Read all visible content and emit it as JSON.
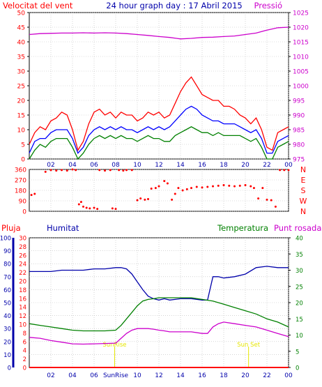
{
  "header": {
    "left_label": "Velocitat del vent",
    "title": "24 hour graph day : 17 Abril 2015",
    "right_label": "Pressió"
  },
  "colors": {
    "wind_gust": "#ff0000",
    "wind_avg": "#0000ff",
    "wind_low": "#008000",
    "pressure": "#cc00cc",
    "direction": "#ff0000",
    "rain": "#ff0000",
    "humidity": "#0000aa",
    "temperature": "#008000",
    "dewpoint": "#cc00cc",
    "sun_marker": "#e6e600",
    "grid": "#bbbbbb"
  },
  "chart_data": [
    {
      "id": "wind-pressure",
      "type": "line",
      "title": "24 hour graph day : 17 Abril 2015",
      "xlabel": "",
      "ylabel": "Velocitat del vent",
      "y2label": "Pressió",
      "x_range": [
        0,
        24
      ],
      "x_ticks": [
        "02",
        "04",
        "06",
        "08",
        "10",
        "12",
        "14",
        "16",
        "18",
        "20",
        "22",
        "00"
      ],
      "x_tick_positions": [
        2,
        4,
        6,
        8,
        10,
        12,
        14,
        16,
        18,
        20,
        22,
        24
      ],
      "ylim": [
        0,
        50
      ],
      "y_ticks": [
        0,
        5,
        10,
        15,
        20,
        25,
        30,
        35,
        40,
        45,
        50
      ],
      "y2lim": [
        975,
        1025
      ],
      "y2_ticks": [
        975,
        980,
        985,
        990,
        995,
        1000,
        1005,
        1010,
        1015,
        1020,
        1025
      ],
      "grid": true,
      "series": [
        {
          "key": "gust",
          "axis": "y",
          "x": [
            0,
            0.5,
            1,
            1.5,
            2,
            2.5,
            3,
            3.5,
            4,
            4.5,
            5,
            5.5,
            6,
            6.5,
            7,
            7.5,
            8,
            8.5,
            9,
            9.5,
            10,
            10.5,
            11,
            11.5,
            12,
            12.5,
            13,
            13.5,
            14,
            14.5,
            15,
            15.5,
            16,
            16.5,
            17,
            17.5,
            18,
            18.5,
            19,
            19.5,
            20,
            20.5,
            21,
            21.5,
            22,
            22.5,
            23,
            23.5,
            24
          ],
          "values": [
            5,
            9,
            11,
            10,
            13,
            14,
            16,
            15,
            10,
            3,
            6,
            12,
            16,
            17,
            15,
            16,
            14,
            16,
            15,
            15,
            13,
            14,
            16,
            15,
            16,
            14,
            15,
            19,
            23,
            26,
            28,
            25,
            22,
            21,
            20,
            20,
            18,
            18,
            17,
            15,
            14,
            12,
            14,
            10,
            4,
            3,
            9,
            10,
            11
          ]
        },
        {
          "key": "avg",
          "axis": "y",
          "x": [
            0,
            0.5,
            1,
            1.5,
            2,
            2.5,
            3,
            3.5,
            4,
            4.5,
            5,
            5.5,
            6,
            6.5,
            7,
            7.5,
            8,
            8.5,
            9,
            9.5,
            10,
            10.5,
            11,
            11.5,
            12,
            12.5,
            13,
            13.5,
            14,
            14.5,
            15,
            15.5,
            16,
            16.5,
            17,
            17.5,
            18,
            18.5,
            19,
            19.5,
            20,
            20.5,
            21,
            21.5,
            22,
            22.5,
            23,
            23.5,
            24
          ],
          "values": [
            2,
            6,
            7,
            7,
            9,
            10,
            10,
            10,
            7,
            2,
            4,
            8,
            10,
            11,
            10,
            11,
            10,
            11,
            10,
            10,
            9,
            10,
            11,
            10,
            11,
            10,
            11,
            13,
            15,
            17,
            18,
            17,
            15,
            14,
            13,
            13,
            12,
            12,
            12,
            11,
            10,
            9,
            10,
            7,
            2,
            2,
            6,
            7,
            8
          ]
        },
        {
          "key": "low",
          "axis": "y",
          "x": [
            0,
            0.5,
            1,
            1.5,
            2,
            2.5,
            3,
            3.5,
            4,
            4.5,
            5,
            5.5,
            6,
            6.5,
            7,
            7.5,
            8,
            8.5,
            9,
            9.5,
            10,
            10.5,
            11,
            11.5,
            12,
            12.5,
            13,
            13.5,
            14,
            14.5,
            15,
            15.5,
            16,
            16.5,
            17,
            17.5,
            18,
            18.5,
            19,
            19.5,
            20,
            20.5,
            21,
            21.5,
            22,
            22.5,
            23,
            23.5,
            24
          ],
          "values": [
            0,
            3,
            5,
            4,
            6,
            7,
            7,
            7,
            4,
            0,
            2,
            5,
            7,
            8,
            7,
            8,
            7,
            8,
            7,
            7,
            6,
            7,
            8,
            7,
            7,
            6,
            6,
            8,
            9,
            10,
            11,
            10,
            9,
            9,
            8,
            9,
            8,
            8,
            8,
            8,
            7,
            6,
            7,
            4,
            0,
            0,
            4,
            5,
            6
          ]
        },
        {
          "key": "pressure",
          "axis": "y2",
          "x": [
            0,
            1,
            2,
            3,
            4,
            5,
            6,
            7,
            8,
            9,
            10,
            11,
            12,
            13,
            14,
            15,
            16,
            17,
            18,
            19,
            20,
            21,
            22,
            23,
            24
          ],
          "values": [
            1017.5,
            1017.8,
            1017.9,
            1018.0,
            1018.0,
            1018.1,
            1018.0,
            1018.1,
            1018.0,
            1017.8,
            1017.5,
            1017.2,
            1016.8,
            1016.5,
            1016.0,
            1016.2,
            1016.5,
            1016.6,
            1016.8,
            1017.0,
            1017.5,
            1018.0,
            1019.0,
            1019.8,
            1020.0
          ]
        }
      ]
    },
    {
      "id": "wind-direction",
      "type": "scatter",
      "x_range": [
        0,
        24
      ],
      "ylim": [
        0,
        360
      ],
      "y_ticks": [
        0,
        90,
        180,
        270,
        360
      ],
      "y2_ticks": [
        "N",
        "W",
        "S",
        "E",
        "N"
      ],
      "grid": true,
      "x": [
        0.2,
        0.5,
        1.5,
        2.0,
        2.5,
        3.0,
        3.5,
        4.0,
        4.3,
        4.6,
        4.8,
        5.0,
        5.3,
        5.6,
        6.0,
        6.3,
        6.5,
        7.0,
        7.5,
        7.7,
        8.0,
        8.3,
        8.7,
        9.0,
        9.5,
        10.0,
        10.3,
        10.7,
        11.0,
        11.3,
        11.7,
        12.0,
        12.5,
        12.8,
        13.2,
        13.5,
        13.8,
        14.2,
        14.6,
        15.0,
        15.5,
        16.0,
        16.5,
        17.0,
        17.5,
        18.0,
        18.5,
        19.0,
        19.5,
        20.0,
        20.5,
        20.8,
        21.2,
        21.6,
        22.0,
        22.4,
        22.8,
        23.2,
        23.6,
        24.0
      ],
      "values": [
        140,
        150,
        340,
        355,
        350,
        355,
        350,
        360,
        355,
        60,
        80,
        40,
        30,
        25,
        30,
        20,
        355,
        350,
        355,
        25,
        20,
        355,
        350,
        355,
        355,
        95,
        110,
        100,
        105,
        195,
        200,
        215,
        260,
        240,
        100,
        150,
        200,
        180,
        190,
        200,
        210,
        205,
        210,
        215,
        220,
        225,
        220,
        215,
        220,
        225,
        215,
        200,
        110,
        200,
        100,
        95,
        40,
        355,
        355,
        355
      ]
    },
    {
      "id": "climate",
      "type": "line",
      "x_range": [
        0,
        24
      ],
      "x_ticks": [
        "02",
        "04",
        "06",
        "SunRise",
        "10",
        "12",
        "14",
        "16",
        "18",
        "20",
        "22",
        "00"
      ],
      "x_tick_positions": [
        2,
        4,
        6,
        8,
        10,
        12,
        14,
        16,
        18,
        20,
        22,
        24
      ],
      "rain_label": "Pluja",
      "humidity_label": "Humitat",
      "temperature_label": "Temperatura",
      "dewpoint_label": "Punt rosada",
      "humidity_lim": [
        0,
        100
      ],
      "humidity_ticks": [
        0,
        10,
        20,
        30,
        40,
        50,
        60,
        70,
        80,
        90,
        100
      ],
      "rain_lim": [
        0,
        30
      ],
      "rain_ticks": [
        0,
        2,
        4,
        6,
        8,
        10,
        12,
        14,
        16,
        18,
        20,
        22,
        24,
        26,
        28,
        30
      ],
      "temperature_lim": [
        0,
        40
      ],
      "temperature_ticks": [
        0,
        5,
        10,
        15,
        20,
        25,
        30,
        35,
        40
      ],
      "grid": true,
      "sunrise": {
        "x": 7.9,
        "label": "SunRise"
      },
      "sunset": {
        "x": 20.3,
        "label": "Sun Set"
      },
      "series": [
        {
          "key": "humidity",
          "axis": "humidity",
          "x": [
            0,
            1,
            2,
            3,
            4,
            5,
            6,
            7,
            8,
            8.5,
            9,
            9.5,
            10,
            10.5,
            11,
            11.5,
            12,
            12.5,
            13,
            14,
            15,
            16,
            16.5,
            17,
            17.5,
            18,
            19,
            20,
            21,
            22,
            23,
            24
          ],
          "values": [
            74,
            74,
            74,
            75,
            75,
            75,
            76,
            76,
            77,
            77,
            76,
            72,
            66,
            60,
            55,
            53,
            52,
            53,
            52,
            53,
            53,
            52,
            52,
            70,
            70,
            69,
            70,
            72,
            77,
            78,
            77,
            77
          ]
        },
        {
          "key": "temperature",
          "axis": "temperature",
          "x": [
            0,
            1,
            2,
            3,
            4,
            5,
            6,
            7,
            8,
            8.5,
            9,
            9.5,
            10,
            10.5,
            11,
            11.5,
            12,
            12.5,
            13,
            14,
            15,
            16,
            17,
            18,
            19,
            20,
            21,
            22,
            23,
            24
          ],
          "values": [
            13.5,
            13,
            12.5,
            12,
            11.5,
            11.3,
            11.3,
            11.3,
            11.5,
            13,
            15,
            17,
            19,
            20.5,
            21,
            21.2,
            21.5,
            21.5,
            21.5,
            21.5,
            21.5,
            21,
            20.5,
            19.5,
            18.5,
            17.5,
            16.5,
            15,
            14,
            12.5
          ]
        },
        {
          "key": "dewpoint",
          "axis": "temperature",
          "x": [
            0,
            1,
            2,
            3,
            4,
            5,
            6,
            7,
            8,
            8.5,
            9,
            9.5,
            10,
            10.5,
            11,
            11.5,
            12,
            12.5,
            13,
            14,
            15,
            16,
            16.5,
            17,
            17.5,
            18,
            19,
            20,
            21,
            22,
            23,
            24
          ],
          "values": [
            9.3,
            9,
            8.3,
            7.8,
            7.3,
            7.2,
            7.3,
            7.4,
            7.5,
            9,
            10.5,
            11.5,
            12,
            12,
            12,
            11.8,
            11.5,
            11.3,
            11,
            11,
            11,
            10.5,
            10.5,
            12.5,
            13.5,
            14,
            13.5,
            13,
            12.5,
            11.5,
            10.5,
            9.5
          ]
        },
        {
          "key": "rain",
          "axis": "rain",
          "x": [
            0,
            24
          ],
          "values": [
            0,
            0
          ]
        }
      ]
    }
  ]
}
